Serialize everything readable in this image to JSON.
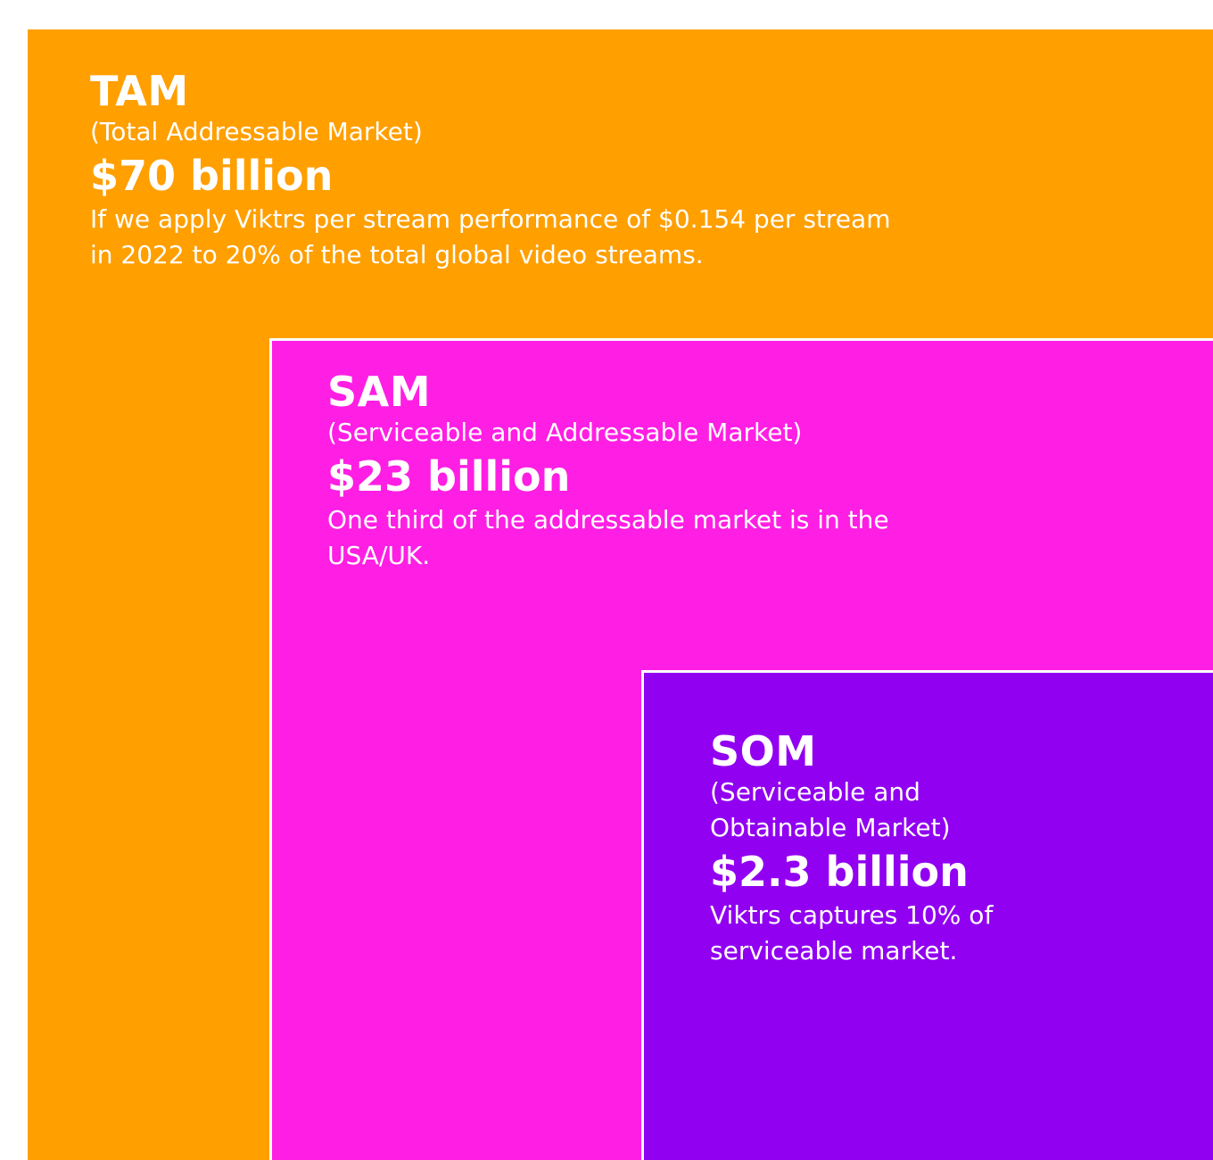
{
  "colors": {
    "tam": "#FF9F00",
    "sam": "#FF1EE3",
    "som": "#9100F0",
    "text": "#FFFFFF"
  },
  "tam": {
    "acronym": "TAM",
    "full_name": "(Total Addressable Market)",
    "value": "$70 billion",
    "description": "If we apply Viktrs per stream performance of $0.154 per stream in 2022 to 20% of the total global video streams."
  },
  "sam": {
    "acronym": "SAM",
    "full_name": "(Serviceable and Addressable Market)",
    "value": "$23 billion",
    "description": "One third of the addressable market is in the USA/UK."
  },
  "som": {
    "acronym": "SOM",
    "full_name": "(Serviceable and Obtainable Market)",
    "value": "$2.3 billion",
    "description": "Viktrs captures 10% of serviceable market."
  }
}
